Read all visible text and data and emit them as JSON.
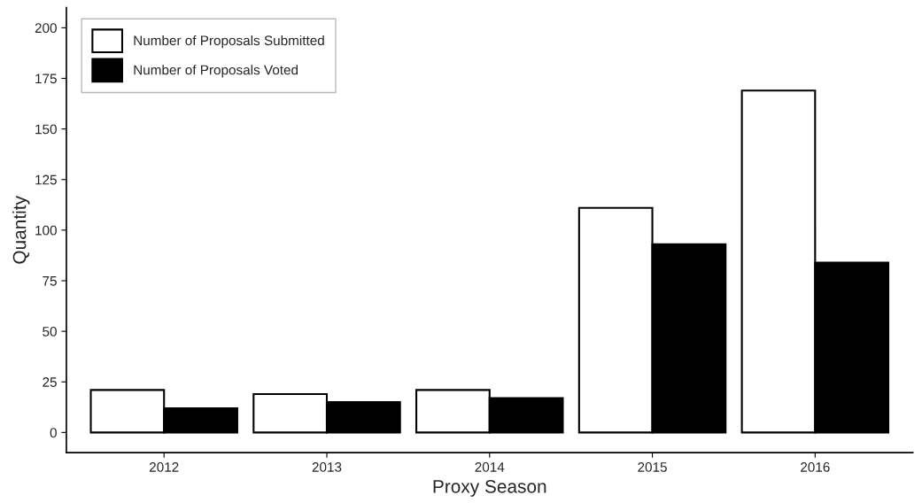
{
  "chart_data": {
    "type": "bar",
    "xlabel": "Proxy Season",
    "ylabel": "Quantity",
    "categories": [
      "2012",
      "2013",
      "2014",
      "2015",
      "2016"
    ],
    "series": [
      {
        "name": "Number of Proposals Submitted",
        "color": "#ffffff",
        "values": [
          21,
          19,
          21,
          111,
          169
        ]
      },
      {
        "name": "Number of Proposals Voted",
        "color": "#000000",
        "values": [
          12,
          15,
          17,
          93,
          84
        ]
      }
    ],
    "ylim": [
      -10,
      210
    ],
    "yticks": [
      0,
      25,
      50,
      75,
      100,
      125,
      150,
      175,
      200
    ],
    "grid": false,
    "legend": "top left"
  }
}
